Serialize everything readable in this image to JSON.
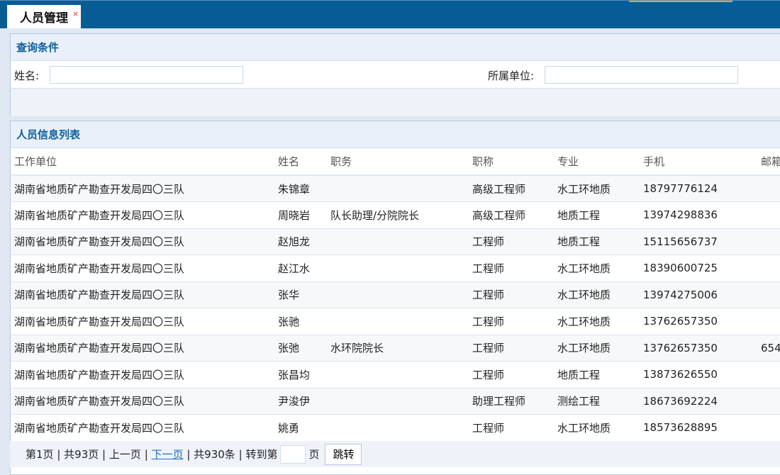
{
  "tab": {
    "title": "人员管理",
    "close": "×"
  },
  "query": {
    "title": "查询条件",
    "name_label": "姓名:",
    "name_value": "",
    "unit_label": "所属单位:",
    "unit_value": ""
  },
  "list": {
    "title": "人员信息列表",
    "columns": [
      "工作单位",
      "姓名",
      "职务",
      "职称",
      "专业",
      "手机",
      "邮箱"
    ],
    "rows": [
      [
        "湖南省地质矿产勘查开发局四〇三队",
        "朱锦章",
        "",
        "高级工程师",
        "水工环地质",
        "18797776124",
        ""
      ],
      [
        "湖南省地质矿产勘查开发局四〇三队",
        "周晓岩",
        "队长助理/分院院长",
        "高级工程师",
        "地质工程",
        "13974298836",
        ""
      ],
      [
        "湖南省地质矿产勘查开发局四〇三队",
        "赵旭龙",
        "",
        "工程师",
        "地质工程",
        "15115656737",
        ""
      ],
      [
        "湖南省地质矿产勘查开发局四〇三队",
        "赵江水",
        "",
        "工程师",
        "水工环地质",
        "18390600725",
        ""
      ],
      [
        "湖南省地质矿产勘查开发局四〇三队",
        "张华",
        "",
        "工程师",
        "水工环地质",
        "13974275006",
        ""
      ],
      [
        "湖南省地质矿产勘查开发局四〇三队",
        "张驰",
        "",
        "工程师",
        "水工环地质",
        "13762657350",
        ""
      ],
      [
        "湖南省地质矿产勘查开发局四〇三队",
        "张弛",
        "水环院院长",
        "工程师",
        "水工环地质",
        "13762657350",
        "654"
      ],
      [
        "湖南省地质矿产勘查开发局四〇三队",
        "张昌均",
        "",
        "工程师",
        "地质工程",
        "13873626550",
        ""
      ],
      [
        "湖南省地质矿产勘查开发局四〇三队",
        "尹浚伊",
        "",
        "助理工程师",
        "测绘工程",
        "18673692224",
        ""
      ],
      [
        "湖南省地质矿产勘查开发局四〇三队",
        "姚勇",
        "",
        "工程师",
        "水工环地质",
        "18573628895",
        ""
      ]
    ]
  },
  "pager": {
    "current": "第1页",
    "total_pages": "共93页",
    "prev": "上一页",
    "next": "下一页",
    "total": "共930条",
    "goto": "转到第",
    "page": "页",
    "jump": "跳转",
    "sep": "|"
  }
}
